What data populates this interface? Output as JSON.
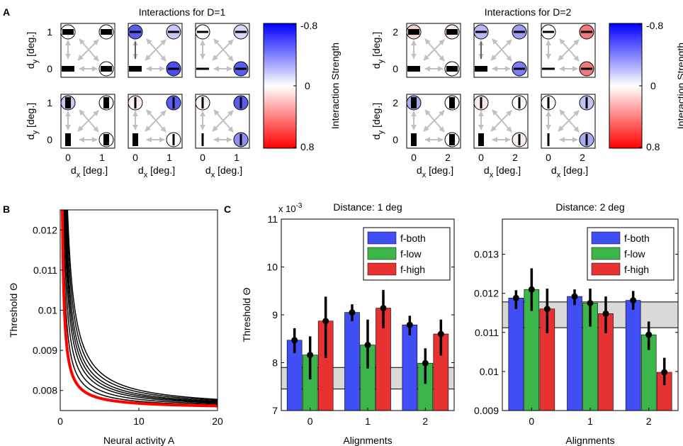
{
  "panel_labels": {
    "a": "A",
    "b": "B",
    "c": "C"
  },
  "colors": {
    "f_both": "#3f4ff5",
    "f_low": "#3cb64a",
    "f_high": "#e83232",
    "band": "#d9d9d9",
    "arrow": "#c0c0c0",
    "curve_red": "#ff0000",
    "curve_black": "#000000"
  },
  "legend": [
    "f-both",
    "f-low",
    "f-high"
  ],
  "interaction_panels": [
    {
      "title": "Interactions for D=1",
      "colorbar_label": "Interaction Strength",
      "colorbar_ticks": [
        "-0.8",
        "0",
        "0.8"
      ],
      "y_label": "d",
      "y_label_sub": "y",
      "y_label_unit": " [deg.]",
      "x_label": "d",
      "x_label_sub": "x",
      "x_label_unit": " [deg.]",
      "y_ticks": [
        "1",
        "0"
      ],
      "x_ticks": [
        "0",
        "1"
      ],
      "rows": [
        {
          "orientation": "horizontal",
          "cells": [
            {
              "tl": "#ffffff",
              "tr": "#ffffff",
              "br": "#ffffff",
              "center_marker": "none"
            },
            {
              "tl": "#5a5ef0",
              "tr": "#c9c9f8",
              "br": "#4a4ef0",
              "center_marker": "tick"
            },
            {
              "tl": "#ffffff",
              "tr": "#d6d6f8",
              "br": "#5a5ef0",
              "center_marker": "none"
            }
          ]
        },
        {
          "orientation": "vertical",
          "cells": [
            {
              "tl": "#c7c7f6",
              "tr": "#ffffff",
              "br": "#ffffff",
              "center_marker": "none"
            },
            {
              "tl": "#fff1f1",
              "tr": "#5a5ef0",
              "br": "#ffffff",
              "center_marker": "none"
            },
            {
              "tl": "#fff4f4",
              "tr": "#5a5ef0",
              "br": "#8d8ff4",
              "center_marker": "none"
            }
          ]
        }
      ]
    },
    {
      "title": "Interactions for D=2",
      "colorbar_label": "Interaction Strength",
      "colorbar_ticks": [
        "-0.8",
        "0",
        "0.8"
      ],
      "y_label": "d",
      "y_label_sub": "y",
      "y_label_unit": " [deg.]",
      "x_label": "d",
      "x_label_sub": "x",
      "x_label_unit": " [deg.]",
      "y_ticks": [
        "2",
        "0"
      ],
      "x_ticks": [
        "0",
        "2"
      ],
      "rows": [
        {
          "orientation": "horizontal",
          "cells": [
            {
              "tl": "#f7d0d0",
              "tr": "#fbeaea",
              "br": "#ffffff",
              "center_marker": "none"
            },
            {
              "tl": "#b7b8f6",
              "tr": "#9b9df4",
              "br": "#7c7ef2",
              "center_marker": "tick"
            },
            {
              "tl": "#ffffff",
              "tr": "#ef7a7a",
              "br": "#ef7a7a",
              "center_marker": "none"
            }
          ]
        },
        {
          "orientation": "vertical",
          "cells": [
            {
              "tl": "#a8aaf4",
              "tr": "#ffffff",
              "br": "#ffffff",
              "center_marker": "none"
            },
            {
              "tl": "#fbeaea",
              "tr": "#ffffff",
              "br": "#fdeeee",
              "center_marker": "none"
            },
            {
              "tl": "#ffffff",
              "tr": "#c2c4f6",
              "br": "#a8aaf4",
              "center_marker": "none"
            }
          ]
        }
      ]
    }
  ],
  "chart_data": [
    {
      "id": "B",
      "type": "line",
      "title": "",
      "xlabel": "Neural activity A",
      "ylabel": "Threshold Θ",
      "xlim": [
        0,
        20
      ],
      "ylim": [
        0.0075,
        0.0125
      ],
      "xticks": [
        "0",
        "10",
        "20"
      ],
      "yticks": [
        "0.008",
        "0.009",
        "0.01",
        "0.011",
        "0.012"
      ],
      "ytick_values": [
        0.008,
        0.009,
        0.01,
        0.011,
        0.012
      ],
      "asymptote": 0.00755,
      "series": [
        {
          "name": "black-1",
          "color": "black",
          "k": 0.0018
        },
        {
          "name": "black-2",
          "color": "black",
          "k": 0.0023
        },
        {
          "name": "black-3",
          "color": "black",
          "k": 0.0028
        },
        {
          "name": "black-4",
          "color": "black",
          "k": 0.0032
        },
        {
          "name": "black-5",
          "color": "black",
          "k": 0.0036
        },
        {
          "name": "black-6",
          "color": "black",
          "k": 0.0041
        },
        {
          "name": "black-7",
          "color": "black",
          "k": 0.0046
        },
        {
          "name": "red",
          "color": "red",
          "k": 0.0013
        }
      ]
    },
    {
      "id": "C1",
      "type": "bar",
      "title": "Distance: 1 deg",
      "xlabel": "Alignments",
      "ylabel": "Threshold Θ",
      "exponent_label": "x 10",
      "exponent_power": "-3",
      "categories": [
        "0",
        "1",
        "2"
      ],
      "ylim": [
        7,
        11
      ],
      "ytick_values": [
        7,
        8,
        9,
        10,
        11
      ],
      "yticks": [
        "7",
        "8",
        "9",
        "10",
        "11"
      ],
      "band": [
        7.45,
        7.9
      ],
      "series": [
        {
          "name": "f-both",
          "values": [
            8.47,
            9.05,
            8.79
          ],
          "err_low": [
            8.2,
            8.87,
            8.57
          ],
          "err_high": [
            8.72,
            9.22,
            8.98
          ]
        },
        {
          "name": "f-low",
          "values": [
            8.16,
            8.37,
            7.99
          ],
          "err_low": [
            7.65,
            7.88,
            7.56
          ],
          "err_high": [
            8.55,
            8.9,
            8.3
          ]
        },
        {
          "name": "f-high",
          "values": [
            8.87,
            9.14,
            8.6
          ],
          "err_low": [
            8.1,
            8.72,
            8.15
          ],
          "err_high": [
            9.38,
            9.52,
            8.9
          ]
        }
      ]
    },
    {
      "id": "C2",
      "type": "bar",
      "title": "Distance: 2 deg",
      "xlabel": "Alignments",
      "ylabel": "",
      "categories": [
        "0",
        "1",
        "2"
      ],
      "ylim": [
        0.009,
        0.0139
      ],
      "ytick_values": [
        0.009,
        0.01,
        0.011,
        0.012,
        0.013
      ],
      "yticks": [
        "0.009",
        "0.01",
        "0.011",
        "0.012",
        "0.013"
      ],
      "band": [
        0.01112,
        0.01178
      ],
      "series": [
        {
          "name": "f-both",
          "values": [
            0.01188,
            0.01192,
            0.01182
          ],
          "err_low": [
            0.0116,
            0.0117,
            0.01158
          ],
          "err_high": [
            0.01208,
            0.0121,
            0.01206
          ]
        },
        {
          "name": "f-low",
          "values": [
            0.0121,
            0.01175,
            0.01094
          ],
          "err_low": [
            0.01155,
            0.01115,
            0.01055
          ],
          "err_high": [
            0.01264,
            0.01212,
            0.01128
          ]
        },
        {
          "name": "f-high",
          "values": [
            0.0116,
            0.01148,
            0.00998
          ],
          "err_low": [
            0.01098,
            0.01098,
            0.00965
          ],
          "err_high": [
            0.01212,
            0.01192,
            0.01035
          ]
        }
      ]
    }
  ]
}
